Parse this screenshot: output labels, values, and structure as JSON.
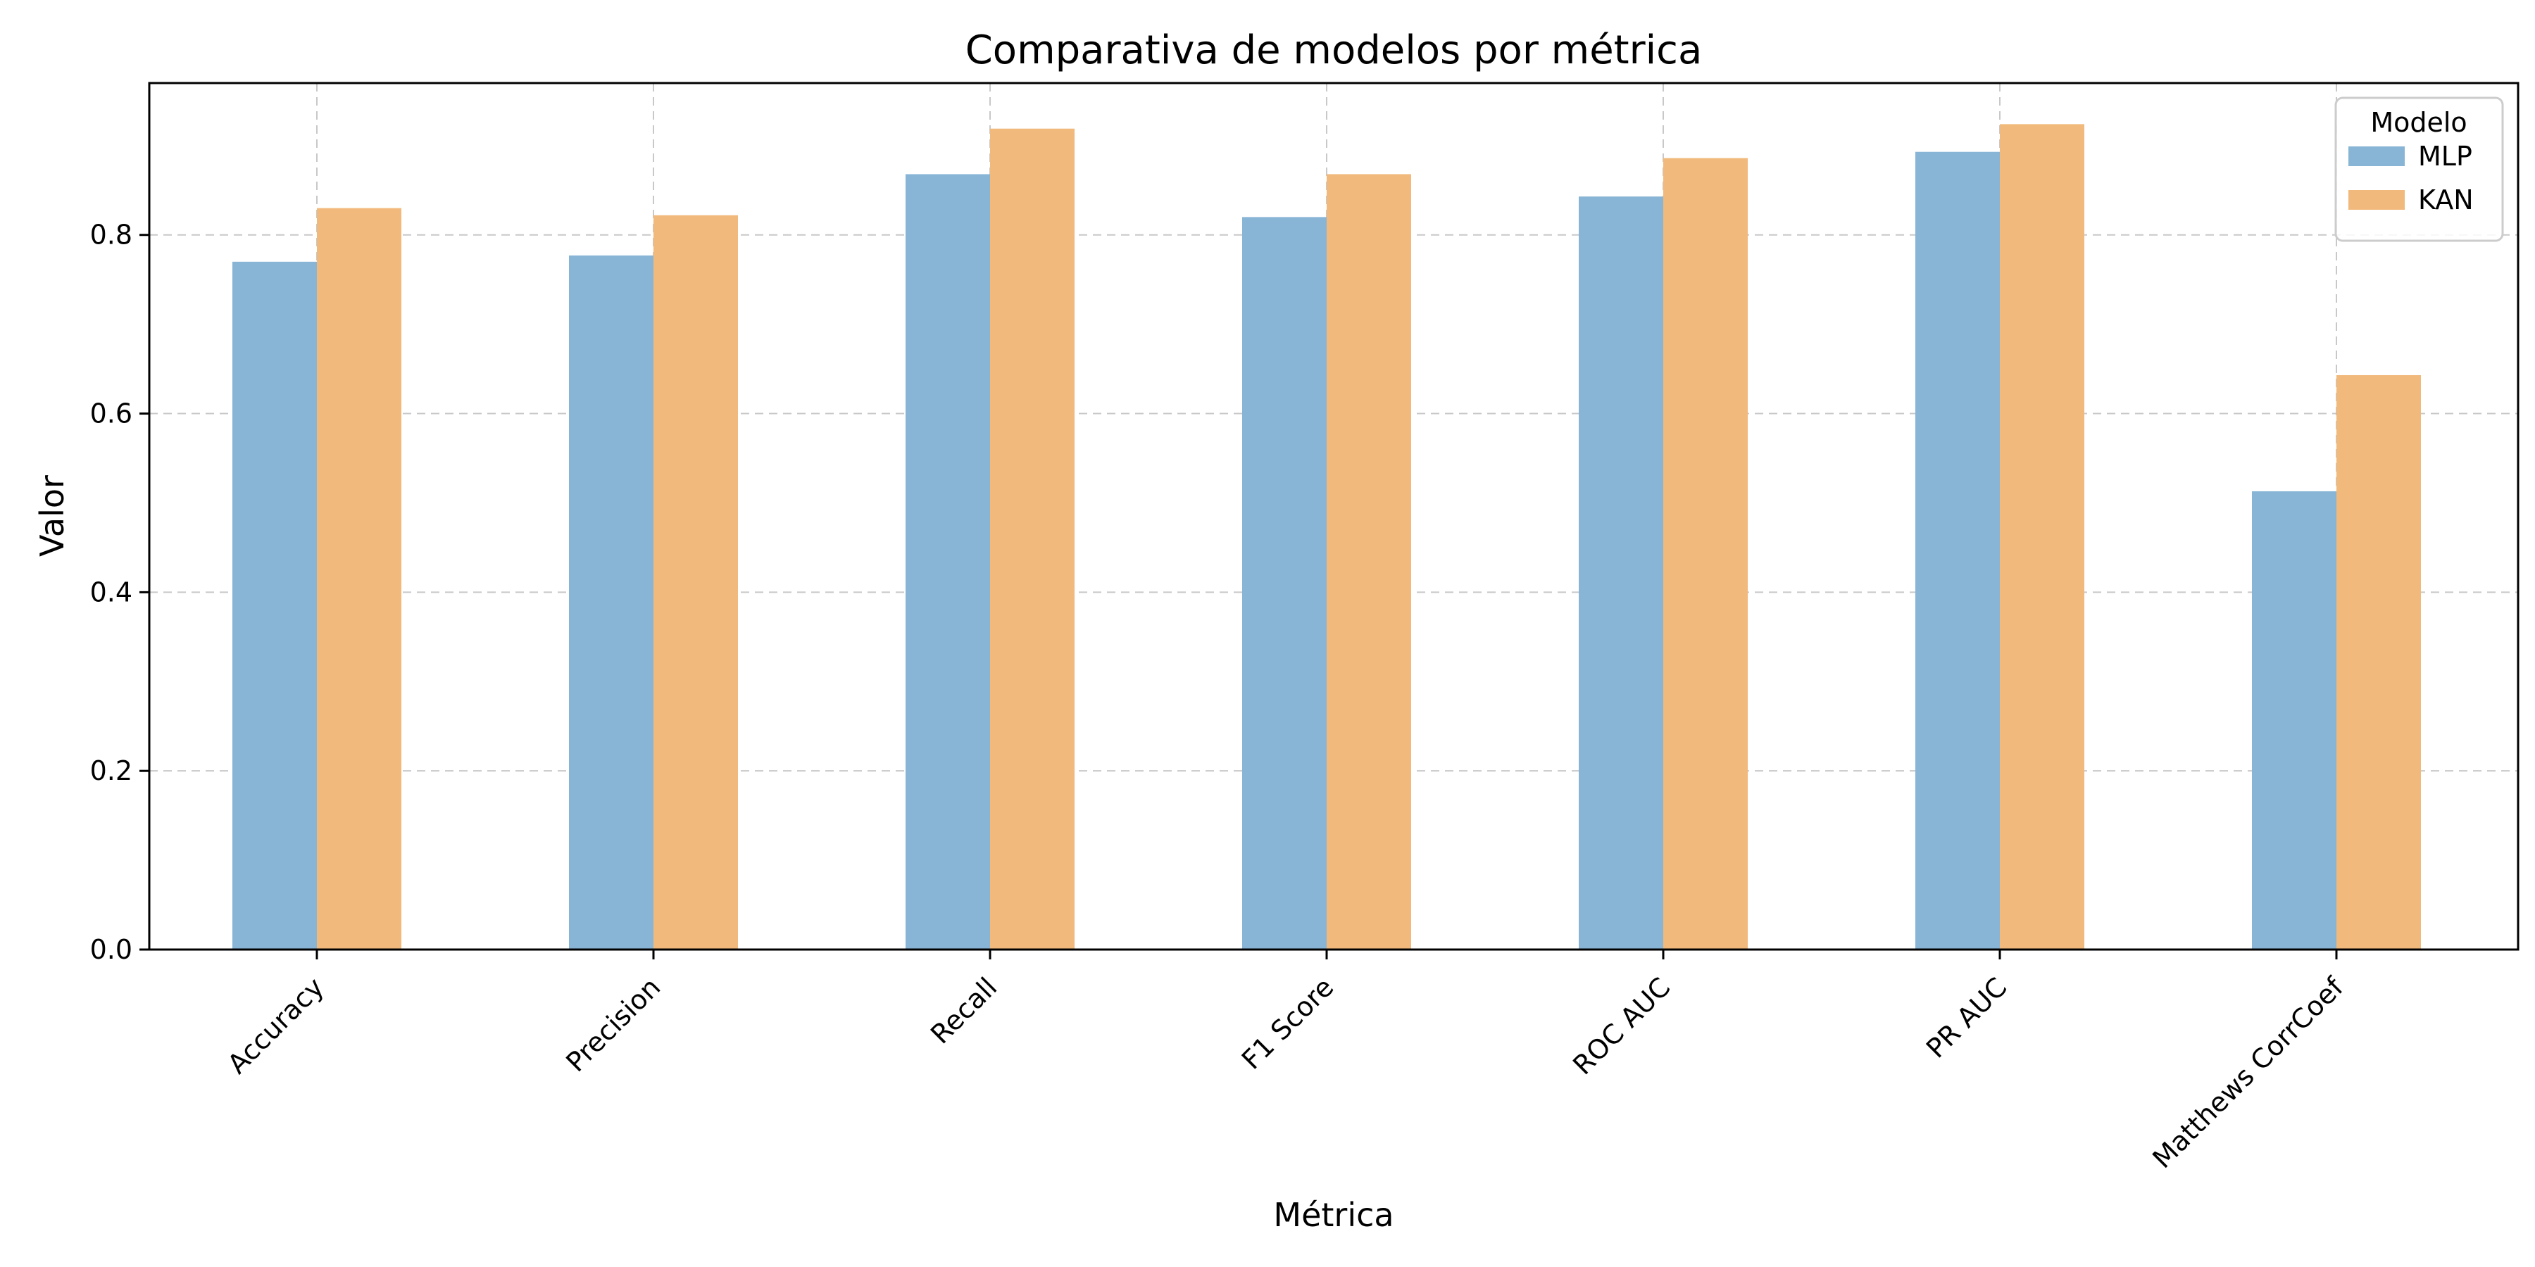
{
  "chart_data": {
    "type": "bar",
    "title": "Comparativa de modelos por métrica",
    "xlabel": "Métrica",
    "ylabel": "Valor",
    "categories": [
      "Accuracy",
      "Precision",
      "Recall",
      "F1 Score",
      "ROC AUC",
      "PR AUC",
      "Matthews CorrCoef"
    ],
    "series": [
      {
        "name": "MLP",
        "color": "#88b5d6",
        "values": [
          0.77,
          0.777,
          0.868,
          0.82,
          0.843,
          0.893,
          0.513
        ]
      },
      {
        "name": "KAN",
        "color": "#f1b97c",
        "values": [
          0.83,
          0.822,
          0.919,
          0.868,
          0.886,
          0.924,
          0.643
        ]
      }
    ],
    "ylim": [
      0,
      0.97
    ],
    "yticks": [
      "0.0",
      "0.2",
      "0.4",
      "0.6",
      "0.8"
    ],
    "grid": true,
    "legend": {
      "title": "Modelo",
      "position": "top-right"
    }
  }
}
